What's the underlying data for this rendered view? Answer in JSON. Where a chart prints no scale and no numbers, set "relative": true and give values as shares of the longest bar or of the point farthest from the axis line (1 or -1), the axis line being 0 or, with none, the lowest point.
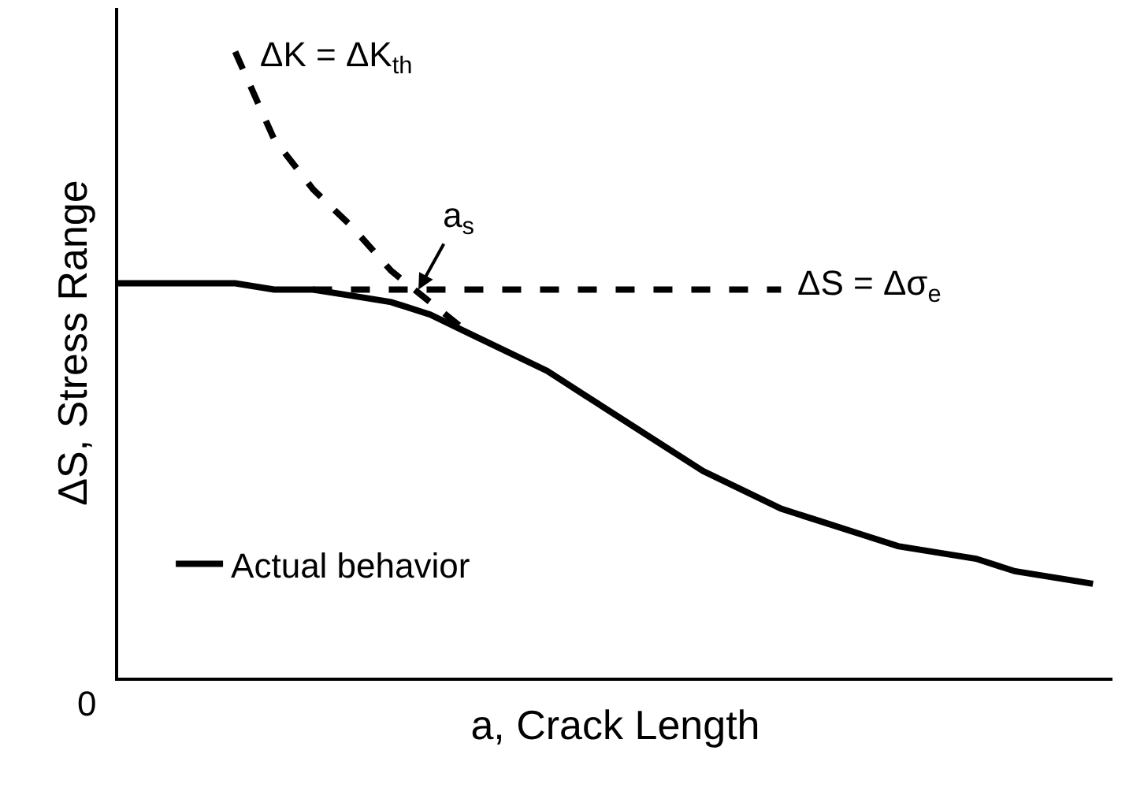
{
  "chart_data": {
    "type": "line",
    "relative": true,
    "xlabel": "a, Crack Length",
    "ylabel": "ΔS, Stress Range",
    "categories": [
      null,
      null,
      null,
      null,
      null,
      null,
      null,
      null,
      null,
      null,
      null,
      null,
      null,
      null,
      null,
      null,
      null,
      null,
      null,
      null,
      null,
      null,
      null,
      null,
      null,
      null
    ],
    "series": [
      {
        "name": "Actual behavior",
        "color": "#000000",
        "line_style": "solid",
        "values": [
          0.63,
          0.63,
          0.63,
          0.63,
          0.62,
          0.62,
          0.61,
          0.6,
          0.58,
          0.55,
          0.52,
          0.49,
          0.45,
          0.41,
          0.37,
          0.33,
          0.3,
          0.27,
          0.25,
          0.23,
          0.21,
          0.2,
          0.19,
          0.17,
          0.16,
          0.15
        ]
      },
      {
        "name": "ΔK = ΔK$_{th}$",
        "color": "#000000",
        "line_style": "dashed",
        "values": [
          null,
          null,
          null,
          1.0,
          0.86,
          0.78,
          0.72,
          0.65,
          0.6,
          0.55,
          null,
          null,
          null,
          null,
          null,
          null,
          null,
          null,
          null,
          null,
          null,
          null,
          null,
          null,
          null,
          null
        ]
      },
      {
        "name": "ΔS = Δσ$_{e}$",
        "color": "#000000",
        "line_style": "dashed",
        "values": [
          null,
          null,
          null,
          null,
          null,
          0.62,
          0.62,
          0.62,
          0.62,
          0.62,
          0.62,
          0.62,
          0.62,
          0.62,
          0.62,
          0.62,
          0.62,
          0.62,
          null,
          null,
          null,
          null,
          null,
          null,
          null,
          null
        ]
      }
    ],
    "annotations": [
      "0",
      {
        "text": "a$_{s}$",
        "y": 0.62
      }
    ],
    "legend": "bottom left"
  }
}
